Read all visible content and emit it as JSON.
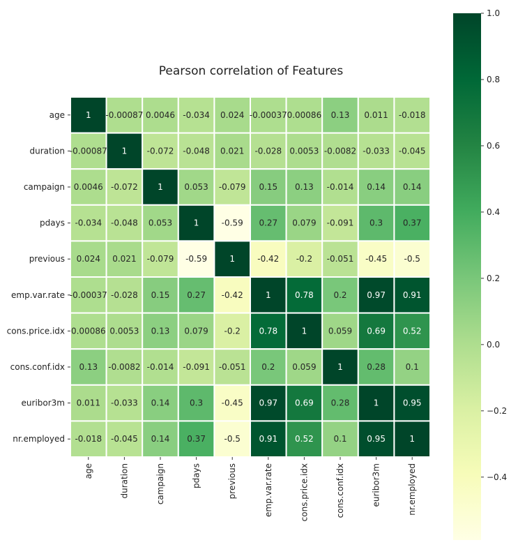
{
  "chart_data": {
    "type": "heatmap",
    "title": "Pearson correlation of Features",
    "labels": [
      "age",
      "duration",
      "campaign",
      "pdays",
      "previous",
      "emp.var.rate",
      "cons.price.idx",
      "cons.conf.idx",
      "euribor3m",
      "nr.employed"
    ],
    "annotations": [
      [
        "1",
        "-0.00087",
        "0.0046",
        "-0.034",
        "0.024",
        "-0.00037",
        "0.00086",
        "0.13",
        "0.011",
        "-0.018"
      ],
      [
        "-0.00087",
        "1",
        "-0.072",
        "-0.048",
        "0.021",
        "-0.028",
        "0.0053",
        "-0.0082",
        "-0.033",
        "-0.045"
      ],
      [
        "0.0046",
        "-0.072",
        "1",
        "0.053",
        "-0.079",
        "0.15",
        "0.13",
        "-0.014",
        "0.14",
        "0.14"
      ],
      [
        "-0.034",
        "-0.048",
        "0.053",
        "1",
        "-0.59",
        "0.27",
        "0.079",
        "-0.091",
        "0.3",
        "0.37"
      ],
      [
        "0.024",
        "0.021",
        "-0.079",
        "-0.59",
        "1",
        "-0.42",
        "-0.2",
        "-0.051",
        "-0.45",
        "-0.5"
      ],
      [
        "-0.00037",
        "-0.028",
        "0.15",
        "0.27",
        "-0.42",
        "1",
        "0.78",
        "0.2",
        "0.97",
        "0.91"
      ],
      [
        "0.00086",
        "0.0053",
        "0.13",
        "0.079",
        "-0.2",
        "0.78",
        "1",
        "0.059",
        "0.69",
        "0.52"
      ],
      [
        "0.13",
        "-0.0082",
        "-0.014",
        "-0.091",
        "-0.051",
        "0.2",
        "0.059",
        "1",
        "0.28",
        "0.1"
      ],
      [
        "0.011",
        "-0.033",
        "0.14",
        "0.3",
        "-0.45",
        "0.97",
        "0.69",
        "0.28",
        "1",
        "0.95"
      ],
      [
        "-0.018",
        "-0.045",
        "0.14",
        "0.37",
        "-0.5",
        "0.91",
        "0.52",
        "0.1",
        "0.95",
        "1"
      ]
    ],
    "colormap": "YlGn",
    "vmin": -0.59,
    "vmax": 1.0,
    "colorbar": {
      "ticks": [
        1.0,
        0.8,
        0.6,
        0.4,
        0.2,
        0.0,
        -0.2,
        -0.4
      ],
      "tick_labels": [
        "1.0",
        "0.8",
        "0.6",
        "0.4",
        "0.2",
        "0.0",
        "−0.2",
        "−0.4"
      ]
    },
    "grid": false,
    "linewidths": "white"
  }
}
